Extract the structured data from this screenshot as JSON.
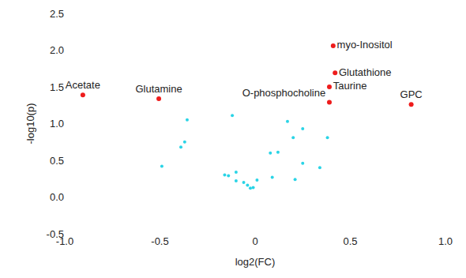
{
  "chart_data": {
    "type": "scatter",
    "x_label": "log2(FC)",
    "y_label": "-log10(p)",
    "xlim": [
      -1.0,
      1.0
    ],
    "xticks": [
      {
        "value": -1.0,
        "label": "-1.0"
      },
      -0.5,
      0,
      0.5,
      {
        "value": 1.0,
        "label": "1.0"
      }
    ],
    "ylim": [
      -0.5,
      2.5
    ],
    "yticks": [
      -0.5,
      {
        "value": 0.0,
        "label": "0.0"
      },
      0.5,
      {
        "value": 1.0,
        "label": "1.0"
      },
      1.5,
      {
        "value": 2.0,
        "label": "2.0"
      },
      2.5
    ],
    "grid": false,
    "series": [
      {
        "color": "#ee1c1c",
        "marker": "circle",
        "x": [
          -0.905,
          -0.506,
          0.41,
          0.42,
          0.39,
          0.39,
          0.82
        ],
        "values": [
          1.39,
          1.34,
          2.06,
          1.69,
          1.5,
          1.29,
          1.26
        ],
        "labels": [
          "Acetate",
          "Glutamine",
          "myo-Inositol",
          "Glutathione",
          "Taurine",
          "O-phosphocholine",
          "GPC"
        ]
      },
      {
        "color": "#2ad4e6",
        "marker": "circle",
        "x": [
          -0.357,
          -0.37,
          -0.39,
          -0.49,
          -0.12,
          -0.16,
          -0.14,
          -0.1,
          -0.1,
          -0.06,
          -0.04,
          -0.025,
          -0.01,
          0.01,
          0.09,
          0.12,
          0.08,
          0.17,
          0.2,
          0.25,
          0.21,
          0.25,
          0.34,
          0.38
        ],
        "values": [
          1.05,
          0.75,
          0.68,
          0.42,
          1.11,
          0.3,
          0.29,
          0.34,
          0.22,
          0.2,
          0.16,
          0.12,
          0.13,
          0.23,
          0.27,
          0.61,
          0.6,
          1.03,
          0.81,
          0.93,
          0.24,
          0.46,
          0.4,
          0.81
        ]
      }
    ]
  }
}
